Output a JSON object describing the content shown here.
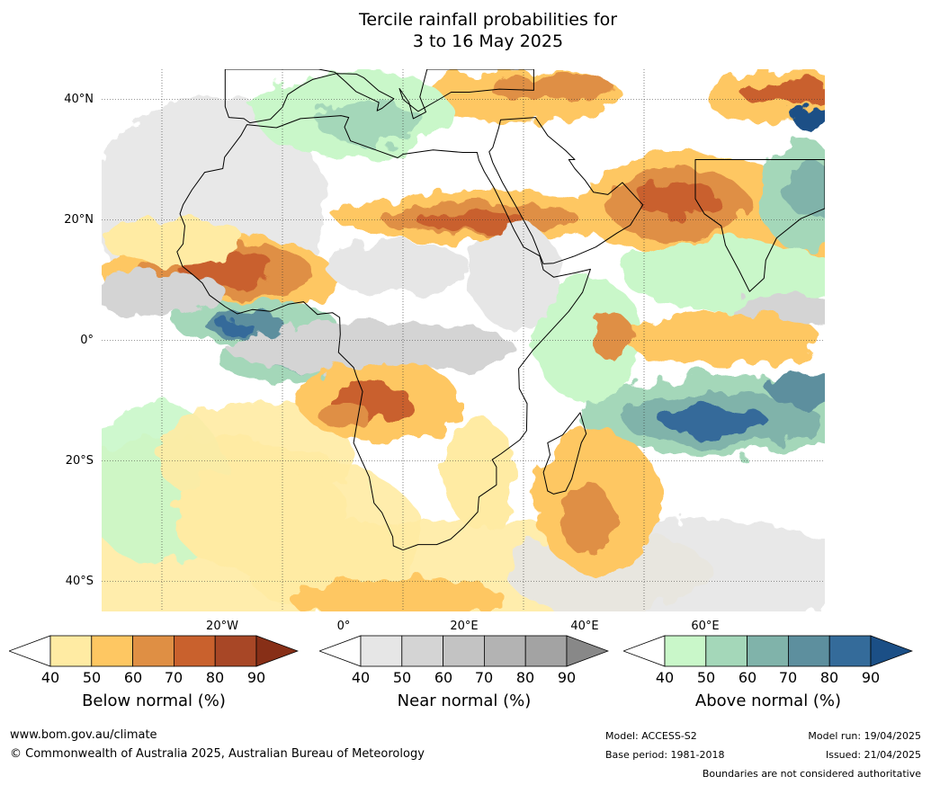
{
  "title": {
    "line1": "Tercile rainfall probabilities for",
    "line2": "3 to 16 May 2025"
  },
  "map": {
    "lat_labels": [
      "40°N",
      "20°N",
      "0°",
      "20°S",
      "40°S"
    ],
    "lon_labels": [
      "20°W",
      "0°",
      "20°E",
      "40°E",
      "60°E"
    ],
    "region": "Africa",
    "colors": {
      "below": [
        "#ffeba3",
        "#fec762",
        "#df8f44",
        "#c9612d",
        "#a84726",
        "#872f17"
      ],
      "near": [
        "#e6e6e6",
        "#d4d4d4",
        "#c3c3c3",
        "#b3b3b3",
        "#a3a3a3",
        "#888888"
      ],
      "above": [
        "#c9f7c9",
        "#a4d7b9",
        "#80b3aa",
        "#5d8f9e",
        "#346b9a",
        "#1b4f86"
      ],
      "land_outline": "#000000",
      "border": "#7a7a7a"
    }
  },
  "colorbars": [
    {
      "title": "Below normal (%)",
      "ticks": [
        "40",
        "50",
        "60",
        "70",
        "80",
        "90"
      ]
    },
    {
      "title": "Near normal (%)",
      "ticks": [
        "40",
        "50",
        "60",
        "70",
        "80",
        "90"
      ]
    },
    {
      "title": "Above normal (%)",
      "ticks": [
        "40",
        "50",
        "60",
        "70",
        "80",
        "90"
      ]
    }
  ],
  "footer": {
    "website": "www.bom.gov.au/climate",
    "copyright": "© Commonwealth of Australia 2025, Australian Bureau of Meteorology",
    "model": "Model: ACCESS-S2",
    "base_period": "Base period: 1981-2018",
    "model_run": "Model run: 19/04/2025",
    "issued": "Issued: 21/04/2025",
    "disclaimer": "Boundaries are not considered authoritative"
  }
}
